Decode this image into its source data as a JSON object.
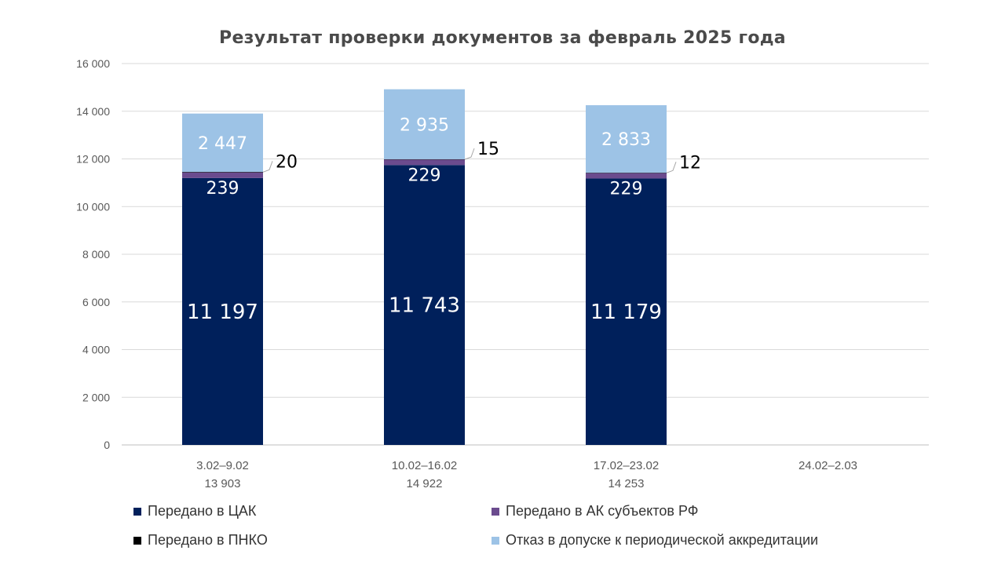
{
  "chart_data": {
    "type": "bar",
    "stacked": true,
    "title": "Результат проверки документов за февраль 2025 года",
    "categories": [
      "3.02–9.02",
      "10.02–16.02",
      "17.02–23.02",
      "24.02–2.03"
    ],
    "category_totals": [
      "13 903",
      "14 922",
      "14 253",
      ""
    ],
    "ylim": [
      0,
      16000
    ],
    "yticks": [
      0,
      2000,
      4000,
      6000,
      8000,
      10000,
      12000,
      14000,
      16000
    ],
    "ytick_labels": [
      "0",
      "2 000",
      "4 000",
      "6 000",
      "8 000",
      "10 000",
      "12 000",
      "14 000",
      "16 000"
    ],
    "grid": true,
    "legend_position": "bottom",
    "series": [
      {
        "name": "Передано в ЦАК",
        "color": "#00205b",
        "values": [
          11197,
          11743,
          11179,
          null
        ],
        "labels": [
          "11 197",
          "11 743",
          "11 179",
          ""
        ]
      },
      {
        "name": "Передано в АК субъектов РФ",
        "color": "#6b4b8e",
        "values": [
          239,
          229,
          229,
          null
        ],
        "labels": [
          "239",
          "229",
          "229",
          ""
        ]
      },
      {
        "name": "Передано в ПНКО",
        "color": "#000000",
        "values": [
          20,
          15,
          12,
          null
        ],
        "labels": [
          "20",
          "15",
          "12",
          ""
        ]
      },
      {
        "name": "Отказ в допуске к периодической аккредитации",
        "color": "#9dc3e6",
        "values": [
          2447,
          2935,
          2833,
          null
        ],
        "labels": [
          "2 447",
          "2 935",
          "2 833",
          ""
        ]
      }
    ]
  }
}
